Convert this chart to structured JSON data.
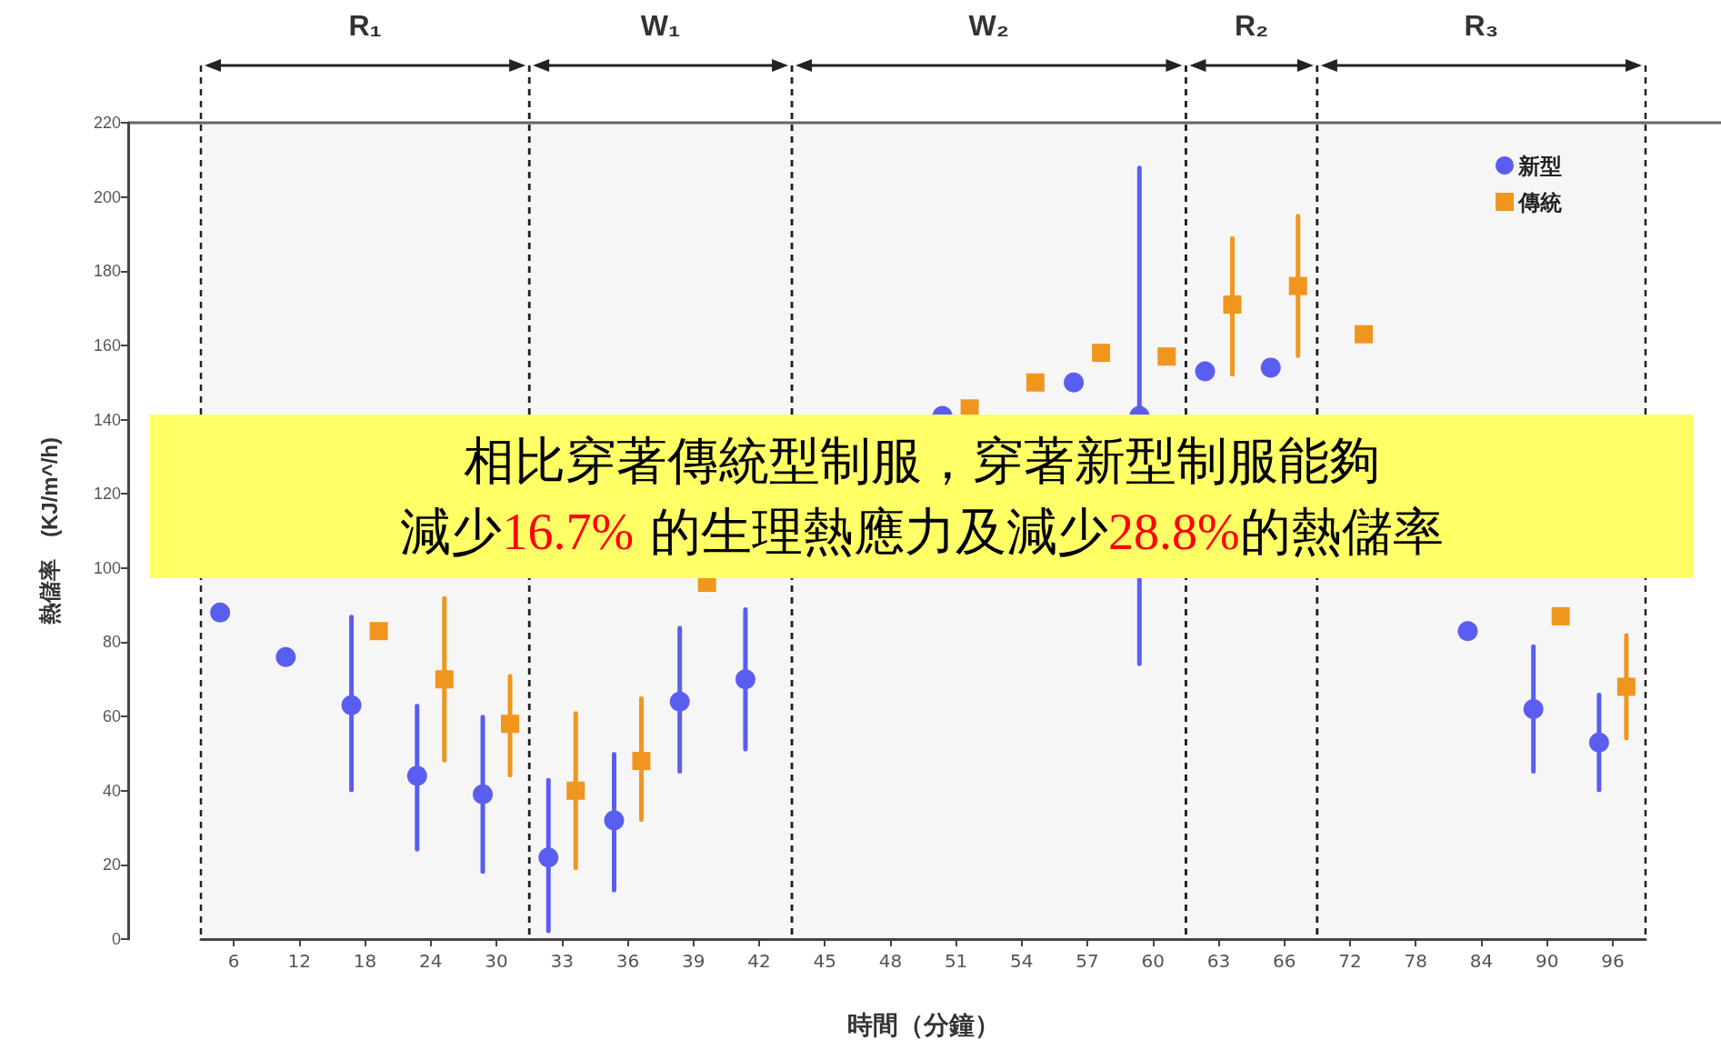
{
  "chart_data": {
    "type": "scatter",
    "xlabel": "時間（分鐘）",
    "ylabel": "熱儲率　(KJ/m^/h)",
    "categories": [
      "6",
      "12",
      "18",
      "24",
      "30",
      "33",
      "36",
      "39",
      "42",
      "45",
      "48",
      "51",
      "54",
      "57",
      "60",
      "63",
      "66",
      "72",
      "78",
      "84",
      "90",
      "96"
    ],
    "series": [
      {
        "name": "新型",
        "color": "#5a5ef0",
        "marker": "circle",
        "values": [
          88,
          76,
          63,
          44,
          39,
          22,
          32,
          64,
          70,
          null,
          null,
          141,
          null,
          150,
          141,
          153,
          154,
          null,
          null,
          83,
          62,
          53
        ],
        "errors": [
          null,
          null,
          [
            40,
            87
          ],
          [
            24,
            63
          ],
          [
            18,
            60
          ],
          [
            2,
            43
          ],
          [
            13,
            50
          ],
          [
            45,
            84
          ],
          [
            51,
            89
          ],
          null,
          null,
          null,
          null,
          null,
          [
            74,
            208
          ],
          null,
          null,
          null,
          null,
          null,
          [
            45,
            79
          ],
          [
            40,
            66
          ]
        ]
      },
      {
        "name": "傳統",
        "color": "#f0961e",
        "marker": "square",
        "values": [
          null,
          null,
          83,
          70,
          58,
          40,
          48,
          96,
          null,
          null,
          null,
          143,
          150,
          158,
          157,
          171,
          176,
          163,
          null,
          null,
          87,
          68
        ],
        "errors": [
          null,
          null,
          null,
          [
            48,
            92
          ],
          [
            44,
            71
          ],
          [
            19,
            61
          ],
          [
            32,
            65
          ],
          null,
          null,
          null,
          null,
          null,
          null,
          null,
          null,
          [
            152,
            189
          ],
          [
            157,
            195
          ],
          null,
          null,
          null,
          null,
          [
            54,
            82
          ]
        ]
      }
    ],
    "ylim": [
      0,
      220
    ],
    "yticks": [
      0,
      20,
      40,
      60,
      80,
      100,
      120,
      140,
      160,
      180,
      200,
      220
    ],
    "grid": false,
    "legend": "top right",
    "bands": [
      {
        "axis": "x",
        "from": "6",
        "to": "30",
        "label": "R₁"
      },
      {
        "axis": "x",
        "from": "33",
        "to": "42",
        "label": "W₁"
      },
      {
        "axis": "x",
        "from": "45",
        "to": "60",
        "label": "W₂"
      },
      {
        "axis": "x",
        "from": "63",
        "to": "66",
        "label": "R₂"
      },
      {
        "axis": "x",
        "from": "72",
        "to": "96",
        "label": "R₃"
      }
    ],
    "annotations": [
      "相比穿著傳統型制服，穿著新型制服能夠",
      "減少16.7% 的生理熱應力及減少28.8%的熱儲率"
    ]
  }
}
